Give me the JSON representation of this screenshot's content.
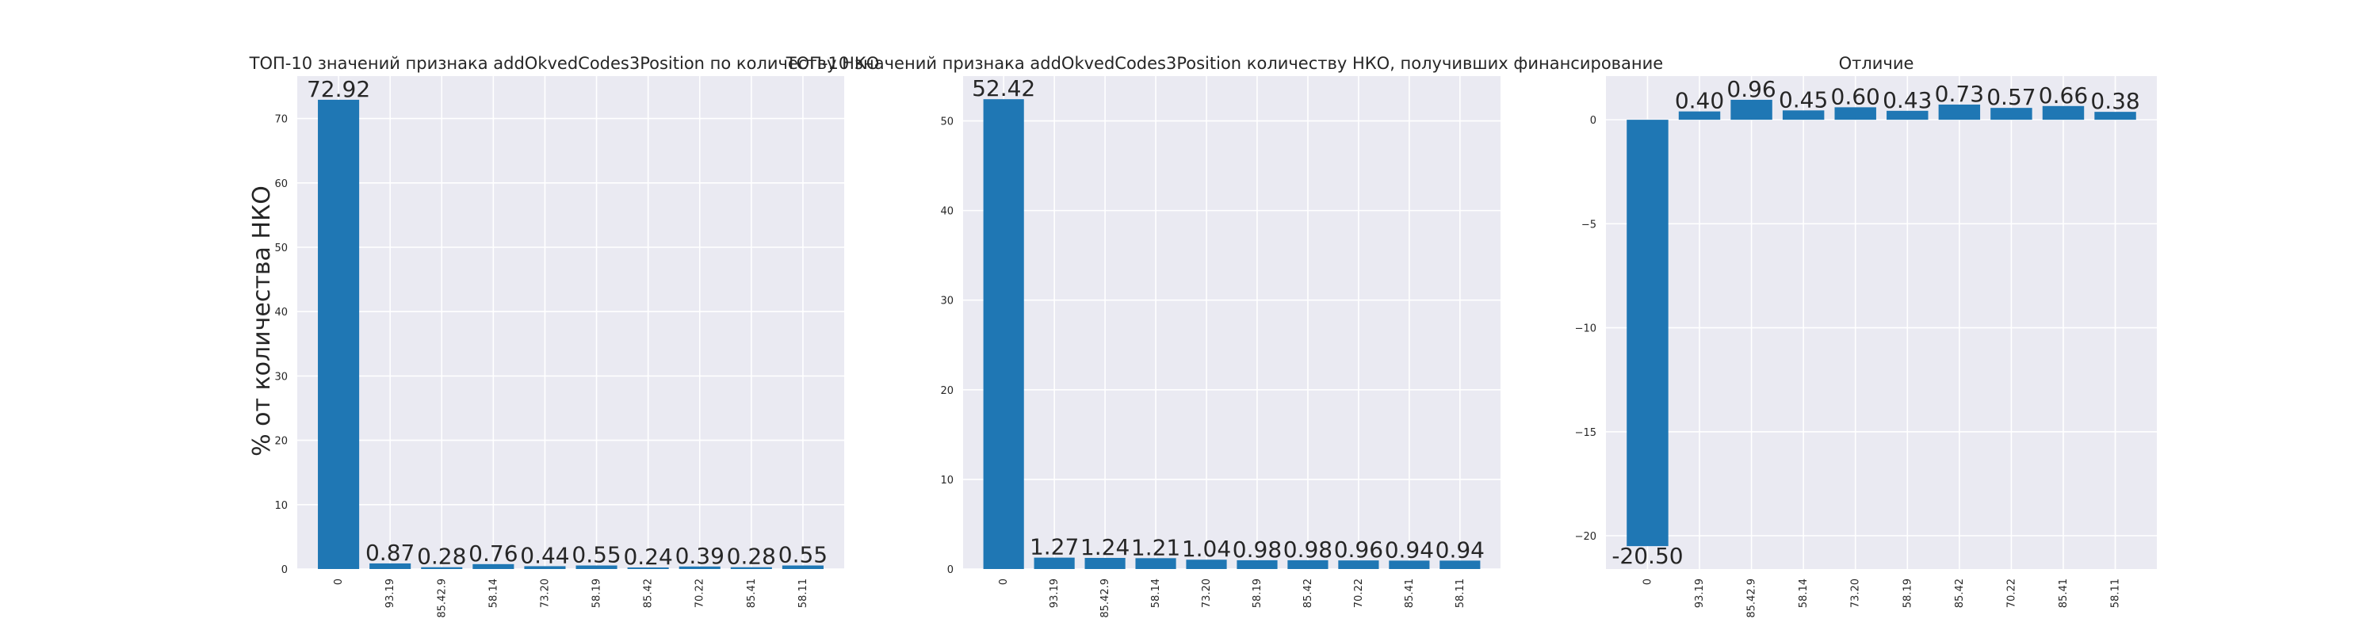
{
  "chart_data": [
    {
      "type": "bar",
      "title": "ТОП-10 значений признака addOkvedCodes3Position по количеству НКО",
      "ylabel": "% от количества НКО",
      "categories": [
        "0",
        "93.19",
        "85.42.9",
        "58.14",
        "73.20",
        "58.19",
        "85.42",
        "70.22",
        "85.41",
        "58.11"
      ],
      "values": [
        72.92,
        0.87,
        0.28,
        0.76,
        0.44,
        0.55,
        0.24,
        0.39,
        0.28,
        0.55
      ],
      "data_labels": [
        "72.92",
        "0.87",
        "0.28",
        "0.76",
        "0.44",
        "0.55",
        "0.24",
        "0.39",
        "0.28",
        "0.55"
      ],
      "yticks": [
        0,
        10,
        20,
        30,
        40,
        50,
        60,
        70
      ],
      "ytick_labels": [
        "0",
        "10",
        "20",
        "30",
        "40",
        "50",
        "60",
        "70"
      ],
      "ylim": [
        0,
        76.6
      ],
      "grid": true,
      "bar_color": "#1f77b4",
      "background": "#eaeaf2"
    },
    {
      "type": "bar",
      "title": "ТОП-10 значений признака addOkvedCodes3Position количеству НКО, получивших финансирование",
      "ylabel": "",
      "categories": [
        "0",
        "93.19",
        "85.42.9",
        "58.14",
        "73.20",
        "58.19",
        "85.42",
        "70.22",
        "85.41",
        "58.11"
      ],
      "values": [
        52.42,
        1.27,
        1.24,
        1.21,
        1.04,
        0.98,
        0.98,
        0.96,
        0.94,
        0.94
      ],
      "data_labels": [
        "52.42",
        "1.27",
        "1.24",
        "1.21",
        "1.04",
        "0.98",
        "0.98",
        "0.96",
        "0.94",
        "0.94"
      ],
      "yticks": [
        0,
        10,
        20,
        30,
        40,
        50
      ],
      "ytick_labels": [
        "0",
        "10",
        "20",
        "30",
        "40",
        "50"
      ],
      "ylim": [
        0,
        55.0
      ],
      "grid": true,
      "bar_color": "#1f77b4",
      "background": "#eaeaf2"
    },
    {
      "type": "bar",
      "title": "Отличие",
      "ylabel": "",
      "categories": [
        "0",
        "93.19",
        "85.42.9",
        "58.14",
        "73.20",
        "58.19",
        "85.42",
        "70.22",
        "85.41",
        "58.11"
      ],
      "values": [
        -20.5,
        0.4,
        0.96,
        0.45,
        0.6,
        0.43,
        0.73,
        0.57,
        0.66,
        0.38
      ],
      "data_labels": [
        "-20.50",
        "0.40",
        "0.96",
        "0.45",
        "0.60",
        "0.43",
        "0.73",
        "0.57",
        "0.66",
        "0.38"
      ],
      "yticks": [
        -20,
        -15,
        -10,
        -5,
        0
      ],
      "ytick_labels": [
        "−20",
        "−15",
        "−10",
        "−5",
        "0"
      ],
      "ylim": [
        -21.6,
        2.1
      ],
      "grid": true,
      "bar_color": "#1f77b4",
      "background": "#eaeaf2"
    }
  ]
}
